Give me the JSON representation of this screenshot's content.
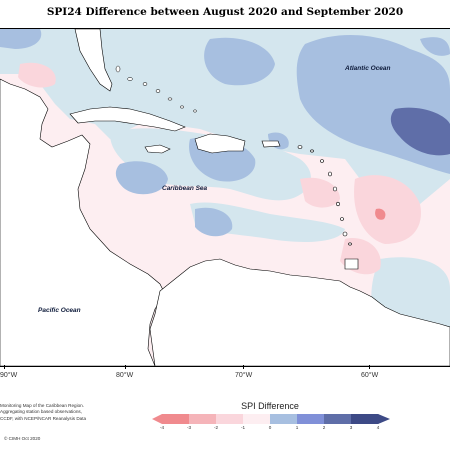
{
  "title": "SPI24 Difference between August 2020 and September 2020",
  "map": {
    "ocean_labels": {
      "atlantic": "Atlantic Ocean",
      "caribbean": "Caribbean Sea",
      "pacific": "Pacific Ocean"
    },
    "longitude_labels": [
      "90°W",
      "80°W",
      "70°W",
      "60°W"
    ]
  },
  "legend": {
    "title": "SPI Difference",
    "ticks": [
      "-4",
      "-3",
      "-2",
      "-1",
      "0",
      "1",
      "2",
      "3",
      "4"
    ],
    "colors": [
      "#f08a8e",
      "#f5b4b9",
      "#fad6dc",
      "#fdeef1",
      "#d4e6ee",
      "#a7bfe0",
      "#8090d8",
      "#5f6ea8",
      "#3d4a86"
    ]
  },
  "footer": {
    "lines": [
      "Monitoring Map of the Caribbean Region.",
      "Aggregating station based observations,",
      "CCDF, with NCEP/NCAR Reanalysis Data"
    ],
    "copyright": "© CIMH Oct 2020"
  },
  "colors": {
    "land": "#ffffff",
    "background_anomaly": "#fdeef1",
    "coastline": "#000000"
  }
}
